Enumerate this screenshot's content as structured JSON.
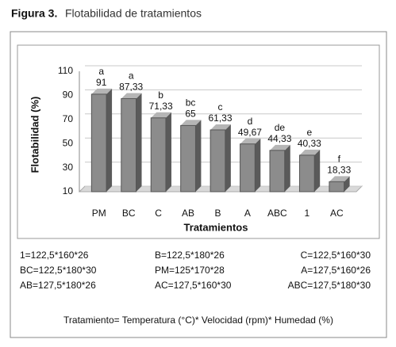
{
  "chart_data": {
    "type": "bar",
    "figure_label": "Figura 3.",
    "title": "Flotabilidad de tratamientos",
    "y_label": "Flotabilidad (%)",
    "x_label": "Tratamientos",
    "categories": [
      "PM",
      "BC",
      "C",
      "AB",
      "B",
      "A",
      "ABC",
      "1",
      "AC"
    ],
    "values": [
      91,
      87.33,
      71.33,
      65,
      61.33,
      49.67,
      44.33,
      40.33,
      18.33
    ],
    "value_labels": [
      "91",
      "87,33",
      "71,33",
      "65",
      "61,33",
      "49,67",
      "44,33",
      "40,33",
      "18,33"
    ],
    "annotations": [
      "a",
      "a",
      "b",
      "bc",
      "c",
      "d",
      "de",
      "e",
      "f"
    ],
    "color": "#8c8c8c",
    "ylim": [
      10,
      110
    ],
    "yticks": [
      10,
      30,
      50,
      70,
      90,
      110
    ],
    "grid": true,
    "legend_notes": [
      "1=122,5*160*26",
      "B=122,5*180*26",
      "C=122,5*160*30",
      "BC=122,5*180*30",
      "PM=125*170*28",
      "A=127,5*160*26",
      "AB=127,5*180*26",
      "AC=127,5*160*30",
      "ABC=127,5*180*30"
    ],
    "footnote": "Tratamiento= Temperatura  (°C)* Velocidad (rpm)* Humedad (%)"
  }
}
